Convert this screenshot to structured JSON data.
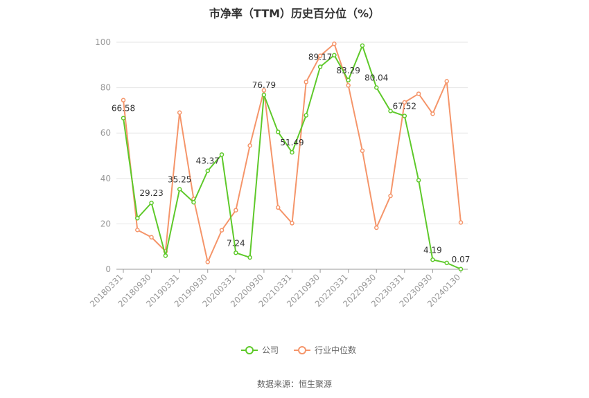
{
  "chart_data": {
    "type": "line",
    "title": "市净率（TTM）历史百分位（%）",
    "ylim": [
      0,
      100
    ],
    "yticks": [
      0,
      20,
      40,
      60,
      80,
      100
    ],
    "x_tick_labels": [
      "20180331",
      "20180930",
      "20190331",
      "20190930",
      "20200331",
      "20200930",
      "20210331",
      "20210930",
      "20220331",
      "20220930",
      "20230331",
      "20230930",
      "20240130"
    ],
    "grid": true,
    "legend_position": "bottom",
    "series": [
      {
        "name": "公司",
        "color": "#5ec92a",
        "values": [
          66.58,
          22.5,
          29.23,
          6.0,
          35.25,
          29.5,
          43.37,
          50.5,
          7.24,
          5.2,
          76.79,
          60.5,
          51.49,
          67.8,
          89.17,
          94.3,
          83.29,
          98.5,
          80.04,
          69.7,
          67.52,
          39.2,
          4.19,
          2.8,
          0.07
        ]
      },
      {
        "name": "行业中位数",
        "color": "#f5956a",
        "values": [
          74.5,
          17.3,
          14.1,
          7.9,
          69.0,
          31.0,
          3.2,
          17.2,
          26.0,
          54.5,
          78.8,
          27.2,
          20.3,
          82.5,
          94.0,
          99.3,
          81.0,
          52.2,
          18.3,
          32.3,
          73.5,
          77.3,
          68.5,
          82.8,
          20.6
        ]
      }
    ],
    "data_labels": [
      {
        "series": 0,
        "index": 0,
        "text": "66.58"
      },
      {
        "series": 0,
        "index": 2,
        "text": "29.23"
      },
      {
        "series": 0,
        "index": 4,
        "text": "35.25"
      },
      {
        "series": 0,
        "index": 6,
        "text": "43.37"
      },
      {
        "series": 0,
        "index": 8,
        "text": "7.24"
      },
      {
        "series": 0,
        "index": 10,
        "text": "76.79"
      },
      {
        "series": 0,
        "index": 12,
        "text": "51.49"
      },
      {
        "series": 0,
        "index": 14,
        "text": "89.17"
      },
      {
        "series": 0,
        "index": 16,
        "text": "83.29"
      },
      {
        "series": 0,
        "index": 18,
        "text": "80.04"
      },
      {
        "series": 0,
        "index": 20,
        "text": "67.52"
      },
      {
        "series": 0,
        "index": 22,
        "text": "4.19"
      },
      {
        "series": 0,
        "index": 24,
        "text": "0.07"
      }
    ]
  },
  "source": "数据来源：恒生聚源"
}
